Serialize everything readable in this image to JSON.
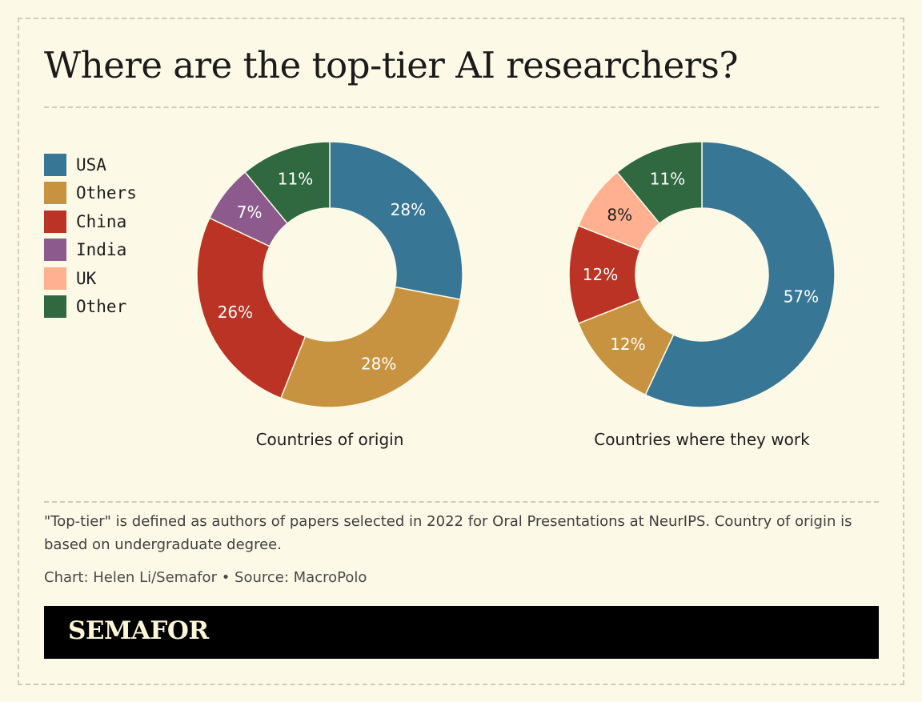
{
  "title": "Where are the top-tier AI researchers?",
  "legend": [
    {
      "label": "USA",
      "color": "#377795"
    },
    {
      "label": "Others",
      "color": "#c79340"
    },
    {
      "label": "China",
      "color": "#bb3324"
    },
    {
      "label": "India",
      "color": "#8d5a8e"
    },
    {
      "label": "UK",
      "color": "#ffb090"
    },
    {
      "label": "Other",
      "color": "#306840"
    }
  ],
  "chart_data": [
    {
      "type": "pie",
      "title": "Countries of origin",
      "slices": [
        {
          "name": "USA",
          "value": 28,
          "label": "28%",
          "color": "#377795",
          "text": "#ffffff"
        },
        {
          "name": "Others",
          "value": 28,
          "label": "28%",
          "color": "#c79340",
          "text": "#ffffff"
        },
        {
          "name": "China",
          "value": 26,
          "label": "26%",
          "color": "#bb3324",
          "text": "#ffffff"
        },
        {
          "name": "India",
          "value": 7,
          "label": "7%",
          "color": "#8d5a8e",
          "text": "#ffffff"
        },
        {
          "name": "Other",
          "value": 11,
          "label": "11%",
          "color": "#306840",
          "text": "#ffffff"
        }
      ]
    },
    {
      "type": "pie",
      "title": "Countries where they work",
      "slices": [
        {
          "name": "USA",
          "value": 57,
          "label": "57%",
          "color": "#377795",
          "text": "#ffffff"
        },
        {
          "name": "Others",
          "value": 12,
          "label": "12%",
          "color": "#c79340",
          "text": "#ffffff"
        },
        {
          "name": "China",
          "value": 12,
          "label": "12%",
          "color": "#bb3324",
          "text": "#ffffff"
        },
        {
          "name": "UK",
          "value": 8,
          "label": "8%",
          "color": "#ffb090",
          "text": "#1d1d1d"
        },
        {
          "name": "Other",
          "value": 11,
          "label": "11%",
          "color": "#306840",
          "text": "#ffffff"
        }
      ]
    }
  ],
  "note": "\"Top-tier\" is defined as authors of papers selected in 2022 for Oral Presentations at NeurIPS. Country of origin is based on undergraduate degree.",
  "credit": "Chart: Helen Li/Semafor • Source: MacroPolo",
  "logo": "SEMAFOR"
}
